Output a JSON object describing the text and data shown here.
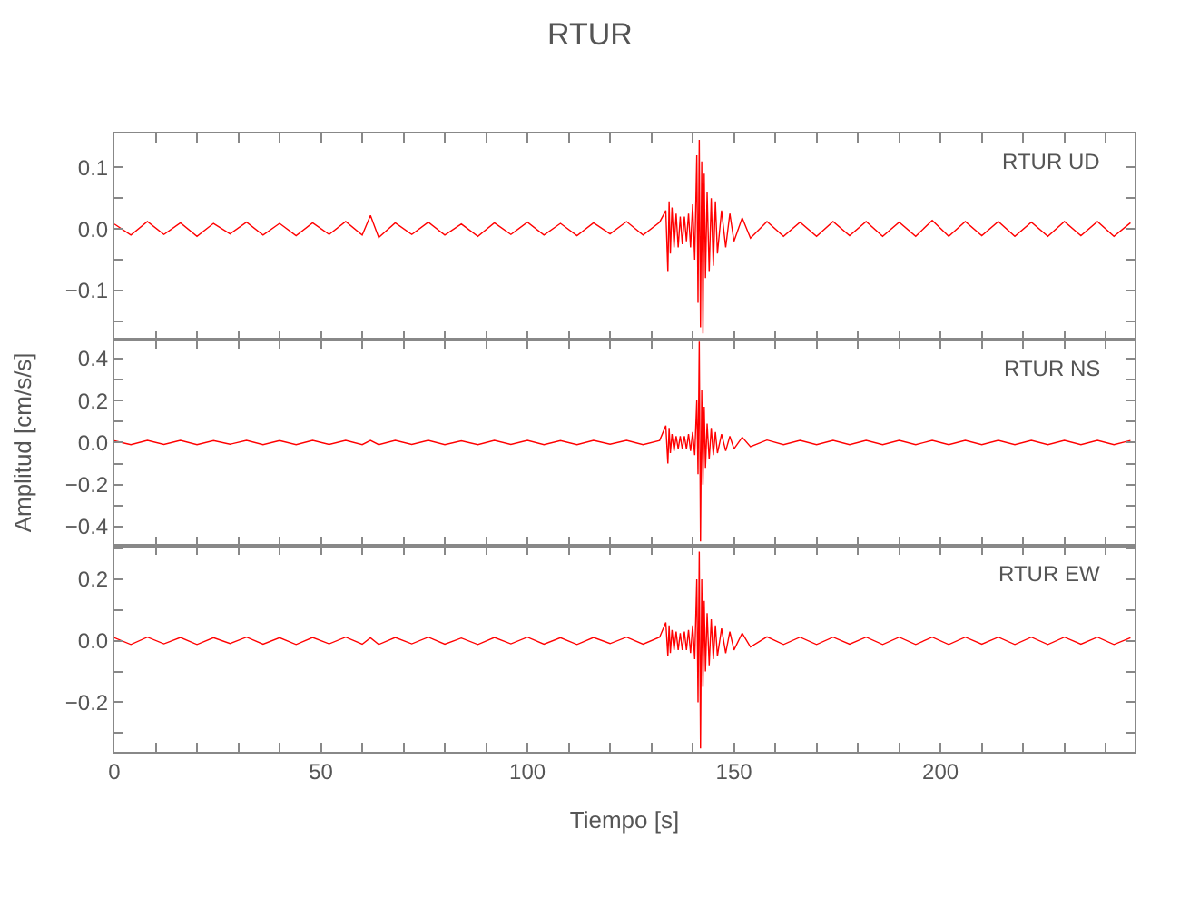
{
  "chart_data": [
    {
      "type": "line",
      "title": "RTUR",
      "annotations": [
        "RTUR UD"
      ],
      "tick_labels": "y",
      "xlim": [
        0,
        247
      ],
      "xticks": [
        0,
        {
          "value": 10,
          "label": null
        },
        {
          "value": 20,
          "label": null
        },
        {
          "value": 30,
          "label": null
        },
        {
          "value": 40,
          "label": null
        },
        50,
        {
          "value": 60,
          "label": null
        },
        {
          "value": 70,
          "label": null
        },
        {
          "value": 80,
          "label": null
        },
        {
          "value": 90,
          "label": null
        },
        100,
        {
          "value": 110,
          "label": null
        },
        {
          "value": 120,
          "label": null
        },
        {
          "value": 130,
          "label": null
        },
        {
          "value": 140,
          "label": null
        },
        150,
        {
          "value": 160,
          "label": null
        },
        {
          "value": 170,
          "label": null
        },
        {
          "value": 180,
          "label": null
        },
        {
          "value": 190,
          "label": null
        },
        200,
        {
          "value": 210,
          "label": null
        },
        {
          "value": 220,
          "label": null
        },
        {
          "value": 230,
          "label": null
        },
        {
          "value": 240,
          "label": null
        }
      ],
      "ylim": [
        -0.18,
        0.155
      ],
      "yticks": [
        {
          "value": -0.15,
          "label": null
        },
        {
          "value": -0.1,
          "label": "−0.1"
        },
        {
          "value": -0.05,
          "label": null
        },
        {
          "value": 0,
          "label": "0.0"
        },
        {
          "value": 0.05,
          "label": null
        },
        0.1
      ],
      "x": [
        0,
        4,
        8,
        12,
        16,
        20,
        24,
        28,
        32,
        36,
        40,
        44,
        48,
        52,
        56,
        60,
        62,
        64,
        68,
        72,
        76,
        80,
        84,
        88,
        92,
        96,
        100,
        104,
        108,
        112,
        116,
        120,
        124,
        128,
        132,
        133.5,
        134,
        134.3,
        134.6,
        135,
        135.5,
        136,
        136.5,
        137,
        137.5,
        138,
        138.5,
        139,
        139.5,
        140,
        140.5,
        141,
        141.3,
        141.6,
        141.9,
        142.2,
        142.5,
        142.8,
        143.1,
        143.5,
        144,
        144.5,
        145,
        145.5,
        146,
        147,
        148,
        149,
        150,
        152,
        154,
        158,
        162,
        166,
        170,
        174,
        178,
        182,
        186,
        190,
        194,
        198,
        202,
        206,
        210,
        214,
        218,
        222,
        226,
        230,
        234,
        238,
        242,
        246
      ],
      "series": [
        {
          "color": "#ff0000",
          "values": [
            0.008,
            -0.01,
            0.012,
            -0.009,
            0.01,
            -0.012,
            0.009,
            -0.008,
            0.011,
            -0.01,
            0.009,
            -0.011,
            0.01,
            -0.009,
            0.012,
            -0.01,
            0.022,
            -0.014,
            0.01,
            -0.009,
            0.011,
            -0.01,
            0.008,
            -0.012,
            0.01,
            -0.009,
            0.011,
            -0.01,
            0.009,
            -0.011,
            0.01,
            -0.008,
            0.012,
            -0.01,
            0.011,
            0.03,
            -0.07,
            0.045,
            -0.04,
            0.035,
            -0.03,
            0.025,
            -0.03,
            0.02,
            -0.025,
            0.02,
            -0.02,
            0.025,
            -0.03,
            0.04,
            -0.05,
            0.12,
            -0.12,
            0.145,
            -0.16,
            0.11,
            -0.17,
            0.09,
            -0.08,
            0.06,
            -0.07,
            0.05,
            -0.06,
            0.045,
            -0.04,
            0.03,
            -0.03,
            0.025,
            -0.02,
            0.018,
            -0.015,
            0.012,
            -0.012,
            0.011,
            -0.012,
            0.012,
            -0.011,
            0.012,
            -0.012,
            0.011,
            -0.012,
            0.014,
            -0.012,
            0.012,
            -0.011,
            0.012,
            -0.012,
            0.011,
            -0.012,
            0.012,
            -0.011,
            0.012,
            -0.012,
            0.01
          ]
        }
      ]
    },
    {
      "type": "line",
      "ylabel": "Amplitud [cm/s/s]",
      "annotations": [
        "RTUR NS"
      ],
      "tick_labels": "y",
      "xlim": [
        0,
        247
      ],
      "xticks": [
        0,
        {
          "value": 10,
          "label": null
        },
        {
          "value": 20,
          "label": null
        },
        {
          "value": 30,
          "label": null
        },
        {
          "value": 40,
          "label": null
        },
        50,
        {
          "value": 60,
          "label": null
        },
        {
          "value": 70,
          "label": null
        },
        {
          "value": 80,
          "label": null
        },
        {
          "value": 90,
          "label": null
        },
        100,
        {
          "value": 110,
          "label": null
        },
        {
          "value": 120,
          "label": null
        },
        {
          "value": 130,
          "label": null
        },
        {
          "value": 140,
          "label": null
        },
        150,
        {
          "value": 160,
          "label": null
        },
        {
          "value": 170,
          "label": null
        },
        {
          "value": 180,
          "label": null
        },
        {
          "value": 190,
          "label": null
        },
        200,
        {
          "value": 210,
          "label": null
        },
        {
          "value": 220,
          "label": null
        },
        {
          "value": 230,
          "label": null
        },
        {
          "value": 240,
          "label": null
        }
      ],
      "ylim": [
        -0.49,
        0.49
      ],
      "yticks": [
        {
          "value": -0.4,
          "label": "−0.4"
        },
        {
          "value": -0.3,
          "label": null
        },
        {
          "value": -0.2,
          "label": "−0.2"
        },
        {
          "value": -0.1,
          "label": null
        },
        {
          "value": 0,
          "label": "0.0"
        },
        {
          "value": 0.1,
          "label": null
        },
        0.2,
        {
          "value": 0.3,
          "label": null
        },
        0.4
      ],
      "x": [
        0,
        4,
        8,
        12,
        16,
        20,
        24,
        28,
        32,
        36,
        40,
        44,
        48,
        52,
        56,
        60,
        62,
        64,
        68,
        72,
        76,
        80,
        84,
        88,
        92,
        96,
        100,
        104,
        108,
        112,
        116,
        120,
        124,
        128,
        132,
        133.5,
        134,
        134.3,
        134.6,
        135,
        135.5,
        136,
        136.5,
        137,
        137.5,
        138,
        138.5,
        139,
        139.5,
        140,
        140.5,
        141,
        141.3,
        141.6,
        141.9,
        142.2,
        142.5,
        142.8,
        143.1,
        143.5,
        144,
        144.5,
        145,
        145.5,
        146,
        147,
        148,
        149,
        150,
        152,
        154,
        158,
        162,
        166,
        170,
        174,
        178,
        182,
        186,
        190,
        194,
        198,
        202,
        206,
        210,
        214,
        218,
        222,
        226,
        230,
        234,
        238,
        242,
        246
      ],
      "series": [
        {
          "color": "#ff0000",
          "values": [
            0.008,
            -0.01,
            0.01,
            -0.009,
            0.01,
            -0.01,
            0.009,
            -0.008,
            0.01,
            -0.01,
            0.009,
            -0.01,
            0.01,
            -0.009,
            0.01,
            -0.01,
            0.01,
            -0.01,
            0.01,
            -0.009,
            0.01,
            -0.01,
            0.008,
            -0.01,
            0.01,
            -0.009,
            0.01,
            -0.01,
            0.009,
            -0.01,
            0.01,
            -0.008,
            0.01,
            -0.01,
            0.01,
            0.08,
            -0.1,
            0.07,
            -0.05,
            0.04,
            -0.04,
            0.03,
            -0.03,
            0.03,
            -0.03,
            0.03,
            -0.03,
            0.04,
            -0.04,
            0.05,
            -0.06,
            0.2,
            -0.15,
            0.48,
            -0.47,
            0.25,
            -0.2,
            0.17,
            -0.12,
            0.09,
            -0.08,
            0.07,
            -0.06,
            0.05,
            -0.05,
            0.04,
            -0.04,
            0.03,
            -0.03,
            0.025,
            -0.02,
            0.012,
            -0.01,
            0.01,
            -0.01,
            0.01,
            -0.01,
            0.01,
            -0.01,
            0.01,
            -0.01,
            0.01,
            -0.01,
            0.01,
            -0.01,
            0.01,
            -0.01,
            0.01,
            -0.01,
            0.01,
            -0.01,
            0.01,
            -0.01,
            0.01
          ]
        }
      ]
    },
    {
      "type": "line",
      "xlabel": "Tiempo [s]",
      "annotations": [
        "RTUR EW"
      ],
      "xlim": [
        0,
        247
      ],
      "xticks": [
        0,
        {
          "value": 10,
          "label": null
        },
        {
          "value": 20,
          "label": null
        },
        {
          "value": 30,
          "label": null
        },
        {
          "value": 40,
          "label": null
        },
        50,
        {
          "value": 60,
          "label": null
        },
        {
          "value": 70,
          "label": null
        },
        {
          "value": 80,
          "label": null
        },
        {
          "value": 90,
          "label": null
        },
        100,
        {
          "value": 110,
          "label": null
        },
        {
          "value": 120,
          "label": null
        },
        {
          "value": 130,
          "label": null
        },
        {
          "value": 140,
          "label": null
        },
        150,
        {
          "value": 160,
          "label": null
        },
        {
          "value": 170,
          "label": null
        },
        {
          "value": 180,
          "label": null
        },
        {
          "value": 190,
          "label": null
        },
        200,
        {
          "value": 210,
          "label": null
        },
        {
          "value": 220,
          "label": null
        },
        {
          "value": 230,
          "label": null
        },
        {
          "value": 240,
          "label": null
        }
      ],
      "ylim": [
        -0.36,
        0.31
      ],
      "yticks": [
        {
          "value": -0.3,
          "label": null
        },
        {
          "value": -0.2,
          "label": "−0.2"
        },
        {
          "value": -0.1,
          "label": null
        },
        {
          "value": 0,
          "label": "0.0"
        },
        {
          "value": 0.1,
          "label": null
        },
        0.2,
        {
          "value": 0.3,
          "label": null
        }
      ],
      "x": [
        0,
        4,
        8,
        12,
        16,
        20,
        24,
        28,
        32,
        36,
        40,
        44,
        48,
        52,
        56,
        60,
        62,
        64,
        68,
        72,
        76,
        80,
        84,
        88,
        92,
        96,
        100,
        104,
        108,
        112,
        116,
        120,
        124,
        128,
        132,
        133.5,
        134,
        134.3,
        134.6,
        135,
        135.5,
        136,
        136.5,
        137,
        137.5,
        138,
        138.5,
        139,
        139.5,
        140,
        140.5,
        141,
        141.3,
        141.6,
        141.9,
        142.2,
        142.5,
        142.8,
        143.1,
        143.5,
        144,
        144.5,
        145,
        145.5,
        146,
        147,
        148,
        149,
        150,
        152,
        154,
        158,
        162,
        166,
        170,
        174,
        178,
        182,
        186,
        190,
        194,
        198,
        202,
        206,
        210,
        214,
        218,
        222,
        226,
        230,
        234,
        238,
        242,
        246
      ],
      "series": [
        {
          "color": "#ff0000",
          "values": [
            0.01,
            -0.012,
            0.012,
            -0.01,
            0.011,
            -0.012,
            0.01,
            -0.009,
            0.012,
            -0.011,
            0.01,
            -0.012,
            0.011,
            -0.01,
            0.012,
            -0.011,
            0.01,
            -0.012,
            0.011,
            -0.01,
            0.012,
            -0.011,
            0.009,
            -0.012,
            0.011,
            -0.01,
            0.012,
            -0.011,
            0.01,
            -0.012,
            0.011,
            -0.009,
            0.012,
            -0.011,
            0.012,
            0.06,
            -0.05,
            0.05,
            -0.04,
            0.035,
            -0.03,
            0.03,
            -0.03,
            0.025,
            -0.03,
            0.03,
            -0.03,
            0.035,
            -0.04,
            0.05,
            -0.06,
            0.2,
            -0.2,
            0.29,
            -0.35,
            0.2,
            -0.15,
            0.13,
            -0.1,
            0.09,
            -0.08,
            0.07,
            -0.06,
            0.05,
            -0.05,
            0.04,
            -0.04,
            0.03,
            -0.03,
            0.025,
            -0.02,
            0.013,
            -0.012,
            0.012,
            -0.012,
            0.012,
            -0.011,
            0.012,
            -0.012,
            0.012,
            -0.012,
            0.012,
            -0.012,
            0.012,
            -0.011,
            0.012,
            -0.012,
            0.012,
            -0.012,
            0.012,
            -0.011,
            0.012,
            -0.012,
            0.01
          ]
        }
      ]
    }
  ]
}
